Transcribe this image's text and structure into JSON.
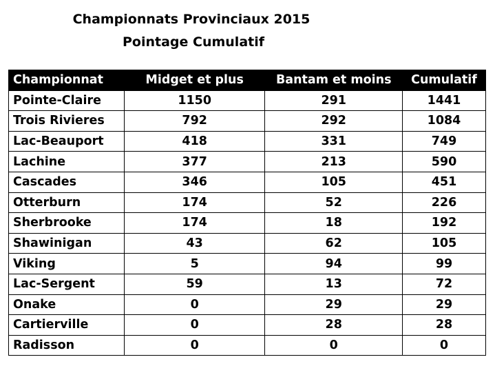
{
  "header": {
    "title": "Championnats Provinciaux 2015",
    "subtitle": "Pointage Cumulatif"
  },
  "table": {
    "columns": [
      "Championnat",
      "Midget et plus",
      "Bantam et moins",
      "Cumulatif"
    ],
    "rows": [
      [
        "Pointe-Claire",
        1150,
        291,
        1441
      ],
      [
        "Trois Rivieres",
        792,
        292,
        1084
      ],
      [
        "Lac-Beauport",
        418,
        331,
        749
      ],
      [
        "Lachine",
        377,
        213,
        590
      ],
      [
        "Cascades",
        346,
        105,
        451
      ],
      [
        "Otterburn",
        174,
        52,
        226
      ],
      [
        "Sherbrooke",
        174,
        18,
        192
      ],
      [
        "Shawinigan",
        43,
        62,
        105
      ],
      [
        "Viking",
        5,
        94,
        99
      ],
      [
        "Lac-Sergent",
        59,
        13,
        72
      ],
      [
        "Onake",
        0,
        29,
        29
      ],
      [
        "Cartierville",
        0,
        28,
        28
      ],
      [
        "Radisson",
        0,
        0,
        0
      ]
    ]
  }
}
